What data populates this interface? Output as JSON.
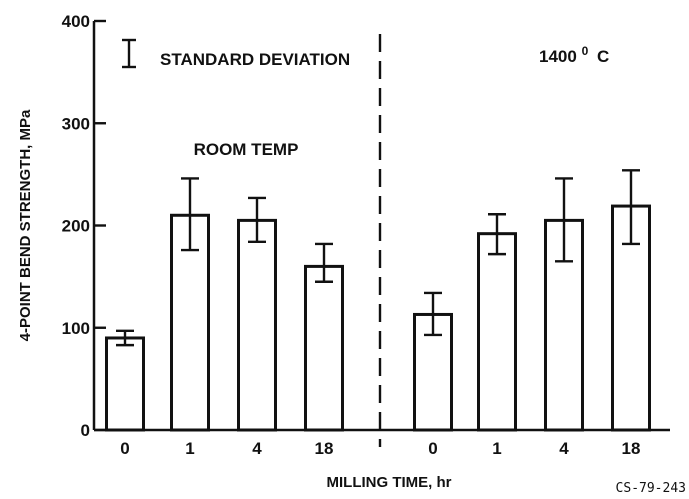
{
  "chart_data": {
    "type": "bar",
    "title": "",
    "xlabel": "MILLING TIME, hr",
    "ylabel": "4-POINT BEND STRENGTH, MPa",
    "ylim": [
      0,
      400
    ],
    "yticks": [
      0,
      100,
      200,
      300,
      400
    ],
    "grid": false,
    "legend": {
      "label": "STANDARD DEVIATION",
      "placement": "top-left",
      "symbol": "error-bar"
    },
    "groups": [
      {
        "label": "ROOM TEMP",
        "categories": [
          "0",
          "1",
          "4",
          "18"
        ],
        "values": [
          90,
          210,
          205,
          160
        ],
        "error_low": [
          83,
          176,
          184,
          145
        ],
        "error_high": [
          97,
          246,
          227,
          182
        ]
      },
      {
        "label": "1400",
        "label_sup": "0",
        "label_unit": "C",
        "categories": [
          "0",
          "1",
          "4",
          "18"
        ],
        "values": [
          113,
          192,
          205,
          219
        ],
        "error_low": [
          93,
          172,
          165,
          182
        ],
        "error_high": [
          134,
          211,
          246,
          254
        ]
      }
    ],
    "group_divider": "dashed vertical line"
  },
  "figure_id": "CS-79-243"
}
